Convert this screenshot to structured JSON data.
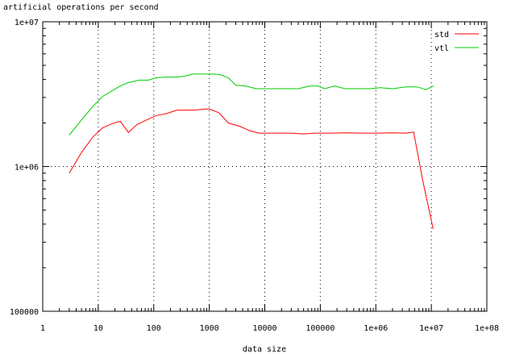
{
  "chart_data": {
    "type": "line",
    "title": "artificial operations per second",
    "xlabel": "data size",
    "ylabel": "",
    "x_scale": "log",
    "y_scale": "log",
    "xlim": [
      1,
      100000000
    ],
    "ylim": [
      100000,
      10000000
    ],
    "x_ticks": [
      {
        "value": 1,
        "label": "1"
      },
      {
        "value": 10,
        "label": "10"
      },
      {
        "value": 100,
        "label": "100"
      },
      {
        "value": 1000,
        "label": "1000"
      },
      {
        "value": 10000,
        "label": "10000"
      },
      {
        "value": 100000,
        "label": "100000"
      },
      {
        "value": 1000000,
        "label": "1e+06"
      },
      {
        "value": 10000000,
        "label": "1e+07"
      },
      {
        "value": 100000000,
        "label": "1e+08"
      }
    ],
    "y_ticks": [
      {
        "value": 100000,
        "label": "100000"
      },
      {
        "value": 1000000,
        "label": "1e+06"
      },
      {
        "value": 10000000,
        "label": "1e+07"
      }
    ],
    "grid": true,
    "legend_position": "top-right",
    "series": [
      {
        "name": "std",
        "color": "#ff0000",
        "points": [
          [
            3,
            900000
          ],
          [
            5,
            1250000
          ],
          [
            8,
            1600000
          ],
          [
            12,
            1850000
          ],
          [
            18,
            1980000
          ],
          [
            25,
            2050000
          ],
          [
            35,
            1720000
          ],
          [
            50,
            1950000
          ],
          [
            75,
            2100000
          ],
          [
            110,
            2250000
          ],
          [
            170,
            2320000
          ],
          [
            260,
            2450000
          ],
          [
            400,
            2450000
          ],
          [
            600,
            2460000
          ],
          [
            900,
            2500000
          ],
          [
            1000,
            2500000
          ],
          [
            1500,
            2350000
          ],
          [
            2200,
            2000000
          ],
          [
            3500,
            1900000
          ],
          [
            5500,
            1760000
          ],
          [
            8000,
            1700000
          ],
          [
            15000,
            1700000
          ],
          [
            30000,
            1700000
          ],
          [
            50000,
            1680000
          ],
          [
            80000,
            1700000
          ],
          [
            150000,
            1700000
          ],
          [
            300000,
            1710000
          ],
          [
            600000,
            1700000
          ],
          [
            1000000,
            1700000
          ],
          [
            2000000,
            1710000
          ],
          [
            3500000,
            1700000
          ],
          [
            4800000,
            1730000
          ],
          [
            7000000,
            800000
          ],
          [
            10800000,
            370000
          ]
        ]
      },
      {
        "name": "vtl",
        "color": "#00cc00",
        "points": [
          [
            3,
            1650000
          ],
          [
            5,
            2100000
          ],
          [
            8,
            2600000
          ],
          [
            12,
            3050000
          ],
          [
            18,
            3350000
          ],
          [
            25,
            3600000
          ],
          [
            35,
            3800000
          ],
          [
            55,
            3950000
          ],
          [
            80,
            3950000
          ],
          [
            110,
            4100000
          ],
          [
            160,
            4150000
          ],
          [
            250,
            4150000
          ],
          [
            350,
            4200000
          ],
          [
            500,
            4350000
          ],
          [
            800,
            4350000
          ],
          [
            1200,
            4350000
          ],
          [
            1600,
            4300000
          ],
          [
            2200,
            4100000
          ],
          [
            3000,
            3650000
          ],
          [
            4500,
            3600000
          ],
          [
            7000,
            3450000
          ],
          [
            12000,
            3450000
          ],
          [
            20000,
            3450000
          ],
          [
            40000,
            3450000
          ],
          [
            65000,
            3600000
          ],
          [
            90000,
            3600000
          ],
          [
            120000,
            3450000
          ],
          [
            180000,
            3600000
          ],
          [
            280000,
            3450000
          ],
          [
            500000,
            3450000
          ],
          [
            800000,
            3450000
          ],
          [
            1200000,
            3500000
          ],
          [
            2000000,
            3450000
          ],
          [
            3500000,
            3550000
          ],
          [
            5500000,
            3550000
          ],
          [
            8000000,
            3400000
          ],
          [
            11000000,
            3600000
          ]
        ]
      }
    ]
  }
}
